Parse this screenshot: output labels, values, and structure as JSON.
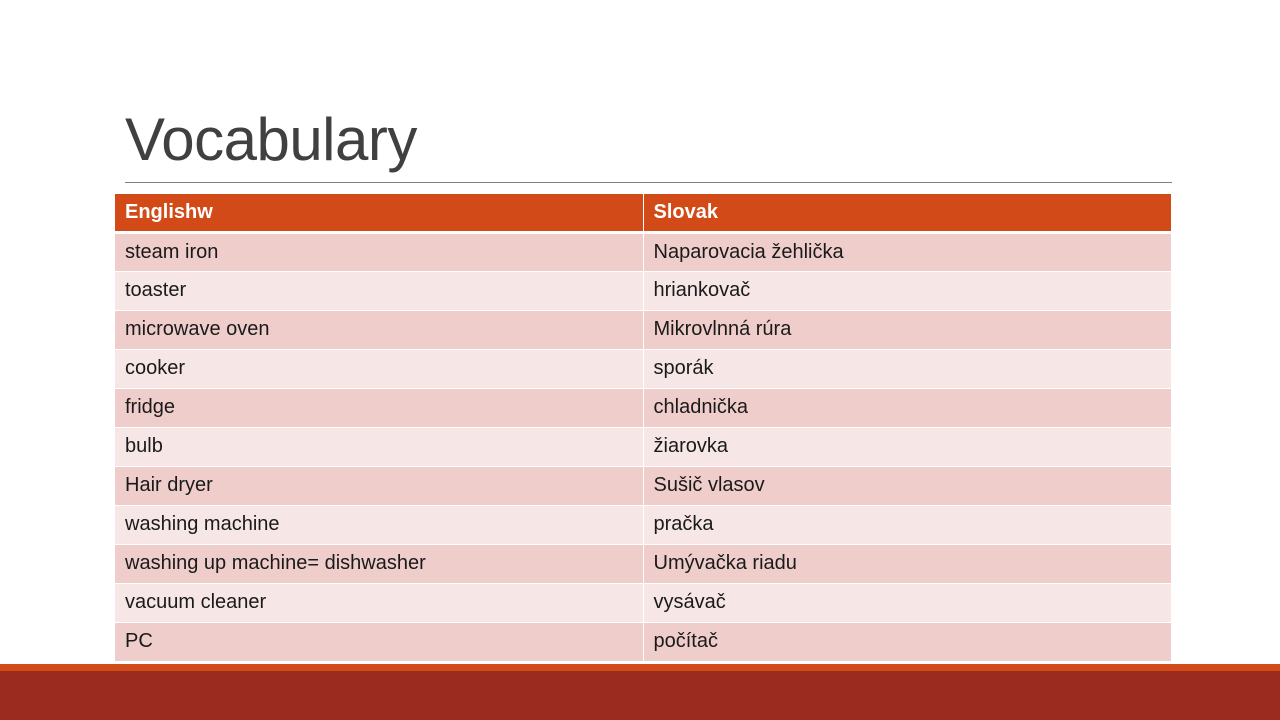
{
  "slide": {
    "title": "Vocabulary",
    "colors": {
      "header_fill": "#d24a17",
      "row_odd": "#efcdcb",
      "row_even": "#f6e7e6",
      "footer": "#9b2b1e",
      "footer_accent": "#d24a17"
    }
  },
  "table": {
    "headers": [
      "Englishw",
      "Slovak"
    ],
    "rows": [
      [
        "steam iron",
        "Naparovacia žehlička"
      ],
      [
        "toaster",
        "hriankovač"
      ],
      [
        "microwave oven",
        "Mikrovlnná rúra"
      ],
      [
        "cooker",
        "sporák"
      ],
      [
        "fridge",
        "chladnička"
      ],
      [
        "bulb",
        "žiarovka"
      ],
      [
        "Hair dryer",
        "Sušič vlasov"
      ],
      [
        "washing machine",
        "pračka"
      ],
      [
        "washing up machine= dishwasher",
        "Umývačka riadu"
      ],
      [
        "vacuum cleaner",
        "vysávač"
      ],
      [
        "PC",
        "počítač"
      ]
    ]
  }
}
